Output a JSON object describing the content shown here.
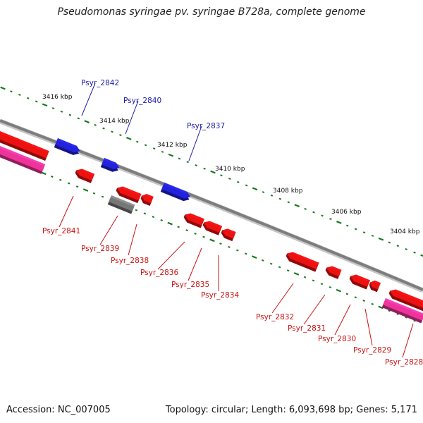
{
  "title": "Pseudomonas syringae pv. syringae B728a, complete genome",
  "footer": {
    "accession": "Accession: NC_007005",
    "summary": "Topology: circular; Length: 6,093,698 bp; Genes: 5,171"
  },
  "colors": {
    "backbone": "#888888",
    "tick": "#1a7a1a",
    "forward_gene": "#2222dd",
    "reverse_gene": "#ee1111",
    "rna_gene": "#ee3399",
    "pseudo_gene": "#777777",
    "forward_label": "#1a1aaa",
    "reverse_label": "#cc1111"
  },
  "scale_labels": [
    "3416 kbp",
    "3414 kbp",
    "3412 kbp",
    "3410 kbp",
    "3408 kbp",
    "3406 kbp",
    "3404 kbp"
  ],
  "forward_labels": [
    "Psyr_2842",
    "Psyr_2840",
    "Psyr_2837"
  ],
  "reverse_labels": [
    "Psyr_2841",
    "Psyr_2839",
    "Psyr_2838",
    "Psyr_2836",
    "Psyr_2835",
    "Psyr_2834",
    "Psyr_2832",
    "Psyr_2831",
    "Psyr_2830",
    "Psyr_2829",
    "Psyr_2828"
  ]
}
